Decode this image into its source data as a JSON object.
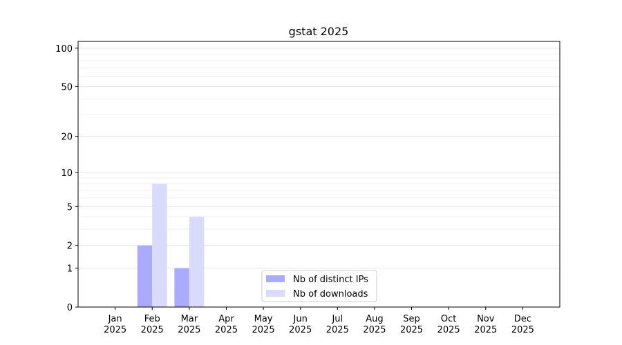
{
  "chart_data": {
    "type": "bar",
    "title": "gstat 2025",
    "categories": [
      "Jan 2025",
      "Feb 2025",
      "Mar 2025",
      "Apr 2025",
      "May 2025",
      "Jun 2025",
      "Jul 2025",
      "Aug 2025",
      "Sep 2025",
      "Oct 2025",
      "Nov 2025",
      "Dec 2025"
    ],
    "series": [
      {
        "name": "Nb of distinct IPs",
        "color": "#aaaaff",
        "values": [
          0,
          2,
          1,
          0,
          0,
          0,
          0,
          0,
          0,
          0,
          0,
          0
        ]
      },
      {
        "name": "Nb of downloads",
        "color": "#dadafc",
        "values": [
          0,
          8,
          4,
          0,
          0,
          0,
          0,
          0,
          0,
          0,
          0,
          0
        ]
      }
    ],
    "yscale": "log1p",
    "ylim": [
      0,
      113
    ],
    "yticks": [
      0,
      1,
      2,
      5,
      10,
      20,
      50,
      100
    ],
    "minor_yticks": [
      3,
      4,
      6,
      7,
      8,
      9,
      30,
      40,
      60,
      70,
      80,
      90
    ],
    "grid": true,
    "legend": "lower center"
  }
}
